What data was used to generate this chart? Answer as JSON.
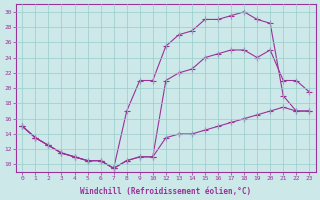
{
  "xlabel": "Windchill (Refroidissement éolien,°C)",
  "background_color": "#cce8e8",
  "line_color": "#993399",
  "grid_color": "#99cccc",
  "line1_x": [
    0,
    1,
    2,
    3,
    4,
    5,
    6,
    7,
    8,
    9,
    10,
    12,
    13,
    14,
    15,
    16,
    17,
    18,
    19,
    20,
    21,
    22,
    23
  ],
  "line1_y": [
    15,
    13.5,
    12.5,
    11.5,
    11,
    10.5,
    10.5,
    9.5,
    10.5,
    11,
    11,
    13.5,
    14,
    14,
    14.5,
    15,
    15.5,
    16,
    16.5,
    17,
    17.5,
    17,
    17
  ],
  "line2_x": [
    0,
    1,
    2,
    3,
    4,
    5,
    6,
    7,
    8,
    9,
    10,
    12,
    13,
    14,
    15,
    16,
    17,
    18,
    19,
    20,
    21,
    22,
    23
  ],
  "line2_y": [
    15,
    13.5,
    12.5,
    11.5,
    11,
    10.5,
    10.5,
    9.5,
    17,
    21,
    21,
    25.5,
    27,
    27.5,
    29,
    29,
    29.5,
    30,
    29,
    28.5,
    19,
    17,
    17
  ],
  "line3_x": [
    0,
    1,
    2,
    3,
    4,
    5,
    6,
    7,
    8,
    9,
    10,
    12,
    13,
    14,
    15,
    16,
    17,
    18,
    19,
    20,
    21,
    22,
    23
  ],
  "line3_y": [
    15,
    13.5,
    12.5,
    11.5,
    11,
    10.5,
    10.5,
    9.5,
    10.5,
    11,
    11,
    21,
    22,
    22.5,
    24,
    24.5,
    25,
    25,
    24,
    25,
    21,
    21,
    19.5
  ],
  "xtick_labels": [
    "0",
    "1",
    "2",
    "3",
    "4",
    "5",
    "6",
    "7",
    "8",
    "9",
    "10",
    "12",
    "13",
    "14",
    "15",
    "16",
    "17",
    "18",
    "19",
    "20",
    "21",
    "22",
    "23"
  ],
  "yticks": [
    10,
    12,
    14,
    16,
    18,
    20,
    22,
    24,
    26,
    28,
    30
  ],
  "ylim": [
    9.0,
    31.0
  ]
}
